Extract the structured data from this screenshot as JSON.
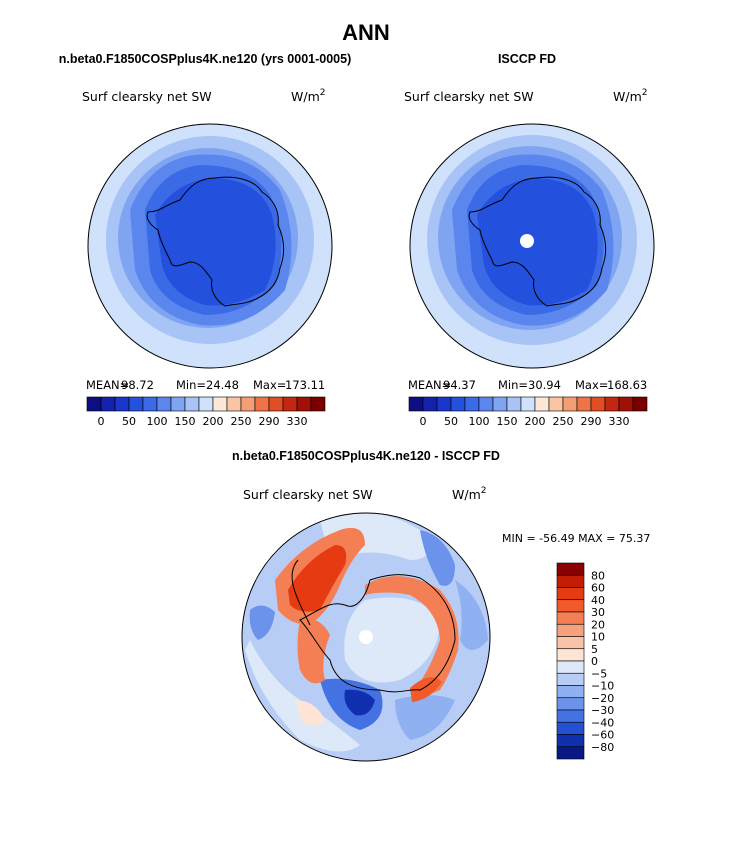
{
  "title": "ANN",
  "panels": [
    {
      "id": "model",
      "heading": "n.beta0.F1850COSPplus4K.ne120 (yrs 0001-0005)",
      "subtitle": "Surf clearsky net SW",
      "units_base": "W/m",
      "units_exp": "2",
      "stats": {
        "mean_label": "MEAN=",
        "mean": "98.72",
        "min_label": "Min=",
        "min": "24.48",
        "max_label": "Max=",
        "max": "173.11"
      }
    },
    {
      "id": "obs",
      "heading": "ISCCP FD",
      "subtitle": "Surf clearsky net SW",
      "units_base": "W/m",
      "units_exp": "2",
      "stats": {
        "mean_label": "MEAN=",
        "mean": "94.37",
        "min_label": "Min=",
        "min": "30.94",
        "max_label": "Max=",
        "max": "168.63"
      }
    }
  ],
  "diff": {
    "heading": "n.beta0.F1850COSPplus4K.ne120 - ISCCP FD",
    "subtitle": "Surf clearsky net SW",
    "units_base": "W/m",
    "units_exp": "2",
    "minmax": "MIN = -56.49 MAX =  75.37"
  },
  "chart_data": [
    {
      "type": "heatmap",
      "projection": "south-polar-stereographic",
      "title": "Surf clearsky net SW",
      "source": "n.beta0.F1850COSPplus4K.ne120 (yrs 0001-0005)",
      "mean": 98.72,
      "min": 24.48,
      "max": 173.11,
      "colorbar": {
        "colors": [
          "#0c0f84",
          "#1321ad",
          "#1a36cc",
          "#2450de",
          "#3a6ae6",
          "#5a86ee",
          "#7fa4f2",
          "#a8c3f6",
          "#cfe1fb",
          "#fde8d8",
          "#f9c5a4",
          "#f49e73",
          "#ee7447",
          "#e04e26",
          "#c32712",
          "#a01006",
          "#7a0000"
        ],
        "tick_labels": [
          "0",
          "50",
          "100",
          "150",
          "200",
          "250",
          "290",
          "330"
        ]
      }
    },
    {
      "type": "heatmap",
      "projection": "south-polar-stereographic",
      "title": "Surf clearsky net SW",
      "source": "ISCCP FD",
      "mean": 94.37,
      "min": 30.94,
      "max": 168.63,
      "colorbar": {
        "colors": [
          "#0c0f84",
          "#1321ad",
          "#1a36cc",
          "#2450de",
          "#3a6ae6",
          "#5a86ee",
          "#7fa4f2",
          "#a8c3f6",
          "#cfe1fb",
          "#fde8d8",
          "#f9c5a4",
          "#f49e73",
          "#ee7447",
          "#e04e26",
          "#c32712",
          "#a01006",
          "#7a0000"
        ],
        "tick_labels": [
          "0",
          "50",
          "100",
          "150",
          "200",
          "250",
          "290",
          "330"
        ]
      }
    },
    {
      "type": "heatmap",
      "projection": "south-polar-stereographic",
      "title": "Surf clearsky net SW",
      "source": "n.beta0.F1850COSPplus4K.ne120 - ISCCP FD",
      "min": -56.49,
      "max": 75.37,
      "colorbar": {
        "levels": [
          "80",
          "60",
          "40",
          "30",
          "20",
          "10",
          "5",
          "0",
          "−5",
          "−10",
          "−20",
          "−30",
          "−40",
          "−60",
          "−80"
        ],
        "colors": [
          "#8b0000",
          "#c31d05",
          "#e53a12",
          "#f25a2a",
          "#f47f54",
          "#f6a07e",
          "#f9c3a8",
          "#fde4d4",
          "#dde8f8",
          "#b8cdf5",
          "#8fb0f1",
          "#6b93ec",
          "#4472e3",
          "#2450d4",
          "#1030b0",
          "#0a1886"
        ]
      }
    }
  ]
}
